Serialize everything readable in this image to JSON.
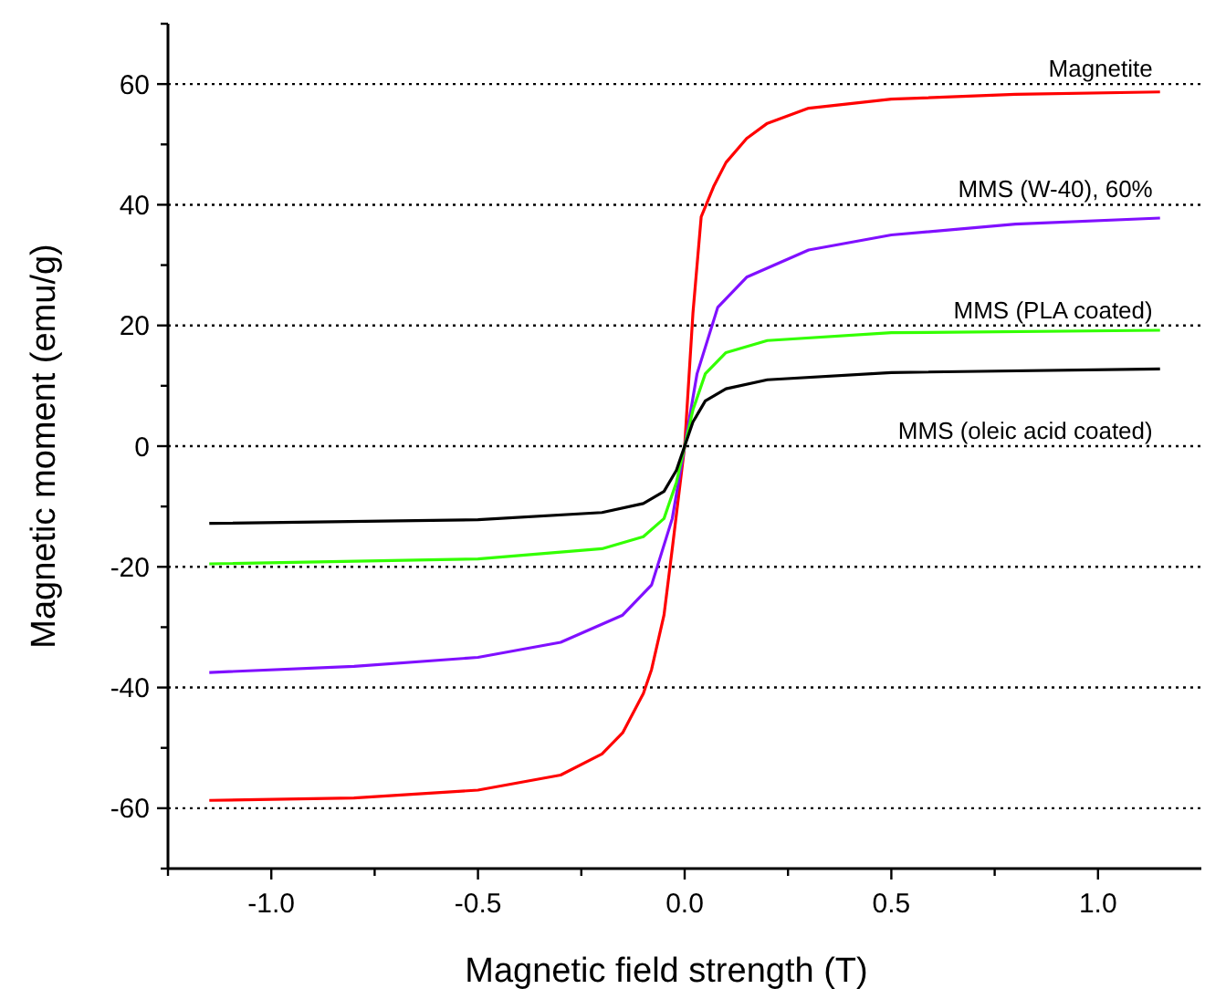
{
  "chart_data": {
    "type": "line",
    "xlabel": "Magnetic field strength (T)",
    "ylabel": "Magnetic moment (emu/g)",
    "xlim": [
      -1.25,
      1.25
    ],
    "ylim": [
      -70,
      70
    ],
    "xticks": [
      {
        "value": -1.25,
        "label": null
      },
      {
        "value": -1.0,
        "label": "-1.0"
      },
      {
        "value": -0.75,
        "label": null
      },
      {
        "value": -0.5,
        "label": "-0.5"
      },
      {
        "value": -0.25,
        "label": null
      },
      {
        "value": 0,
        "label": "0.0"
      },
      {
        "value": 0.25,
        "label": null
      },
      {
        "value": 0.5,
        "label": "0.5"
      },
      {
        "value": 0.75,
        "label": null
      },
      {
        "value": 1.0,
        "label": "1.0"
      }
    ],
    "yticks": [
      {
        "value": -70,
        "label": null
      },
      -60,
      {
        "value": -50,
        "label": null
      },
      -40,
      {
        "value": -30,
        "label": null
      },
      -20,
      {
        "value": -10,
        "label": null
      },
      0,
      {
        "value": 10,
        "label": null
      },
      20,
      {
        "value": 30,
        "label": null
      },
      40,
      {
        "value": 50,
        "label": null
      },
      60,
      {
        "value": 70,
        "label": null
      }
    ],
    "grid": "y",
    "line_style": "solid",
    "marker": "none",
    "series": [
      {
        "name": "Magnetite",
        "color": "#ff0000",
        "x": [
          -1.15,
          -0.8,
          -0.5,
          -0.3,
          -0.2,
          -0.15,
          -0.1,
          -0.08,
          -0.05,
          -0.03,
          0,
          0.02,
          0.04,
          0.07,
          0.1,
          0.15,
          0.2,
          0.3,
          0.5,
          0.8,
          1.15
        ],
        "values": [
          -58.7,
          -58.3,
          -57,
          -54.5,
          -51,
          -47.5,
          -41,
          -37,
          -28,
          -17,
          0,
          22,
          38,
          43,
          47,
          51,
          53.5,
          56,
          57.5,
          58.3,
          58.7
        ]
      },
      {
        "name": "MMS (W-40), 60%",
        "color": "#8010ff",
        "x": [
          -1.15,
          -0.8,
          -0.5,
          -0.3,
          -0.15,
          -0.08,
          -0.03,
          0,
          0.03,
          0.08,
          0.15,
          0.3,
          0.5,
          0.8,
          1.15
        ],
        "values": [
          -37.5,
          -36.5,
          -35,
          -32.5,
          -28,
          -23,
          -12,
          0,
          12,
          23,
          28,
          32.5,
          35,
          36.8,
          37.8
        ]
      },
      {
        "name": "MMS (PLA coated)",
        "color": "#33ff00",
        "x": [
          -1.15,
          -0.5,
          -0.2,
          -0.1,
          -0.05,
          -0.02,
          0,
          0.02,
          0.05,
          0.1,
          0.2,
          0.5,
          1.15
        ],
        "values": [
          -19.5,
          -18.7,
          -17,
          -15,
          -12,
          -6,
          0,
          6,
          12,
          15.5,
          17.5,
          18.8,
          19.2
        ]
      },
      {
        "name": "MMS (oleic acid coated)",
        "color": "#000000",
        "x": [
          -1.15,
          -0.5,
          -0.2,
          -0.1,
          -0.05,
          -0.02,
          0,
          0.02,
          0.05,
          0.1,
          0.2,
          0.5,
          1.15
        ],
        "values": [
          -12.8,
          -12.2,
          -11,
          -9.5,
          -7.5,
          -4,
          0,
          4,
          7.5,
          9.5,
          11,
          12.2,
          12.8
        ]
      }
    ]
  }
}
